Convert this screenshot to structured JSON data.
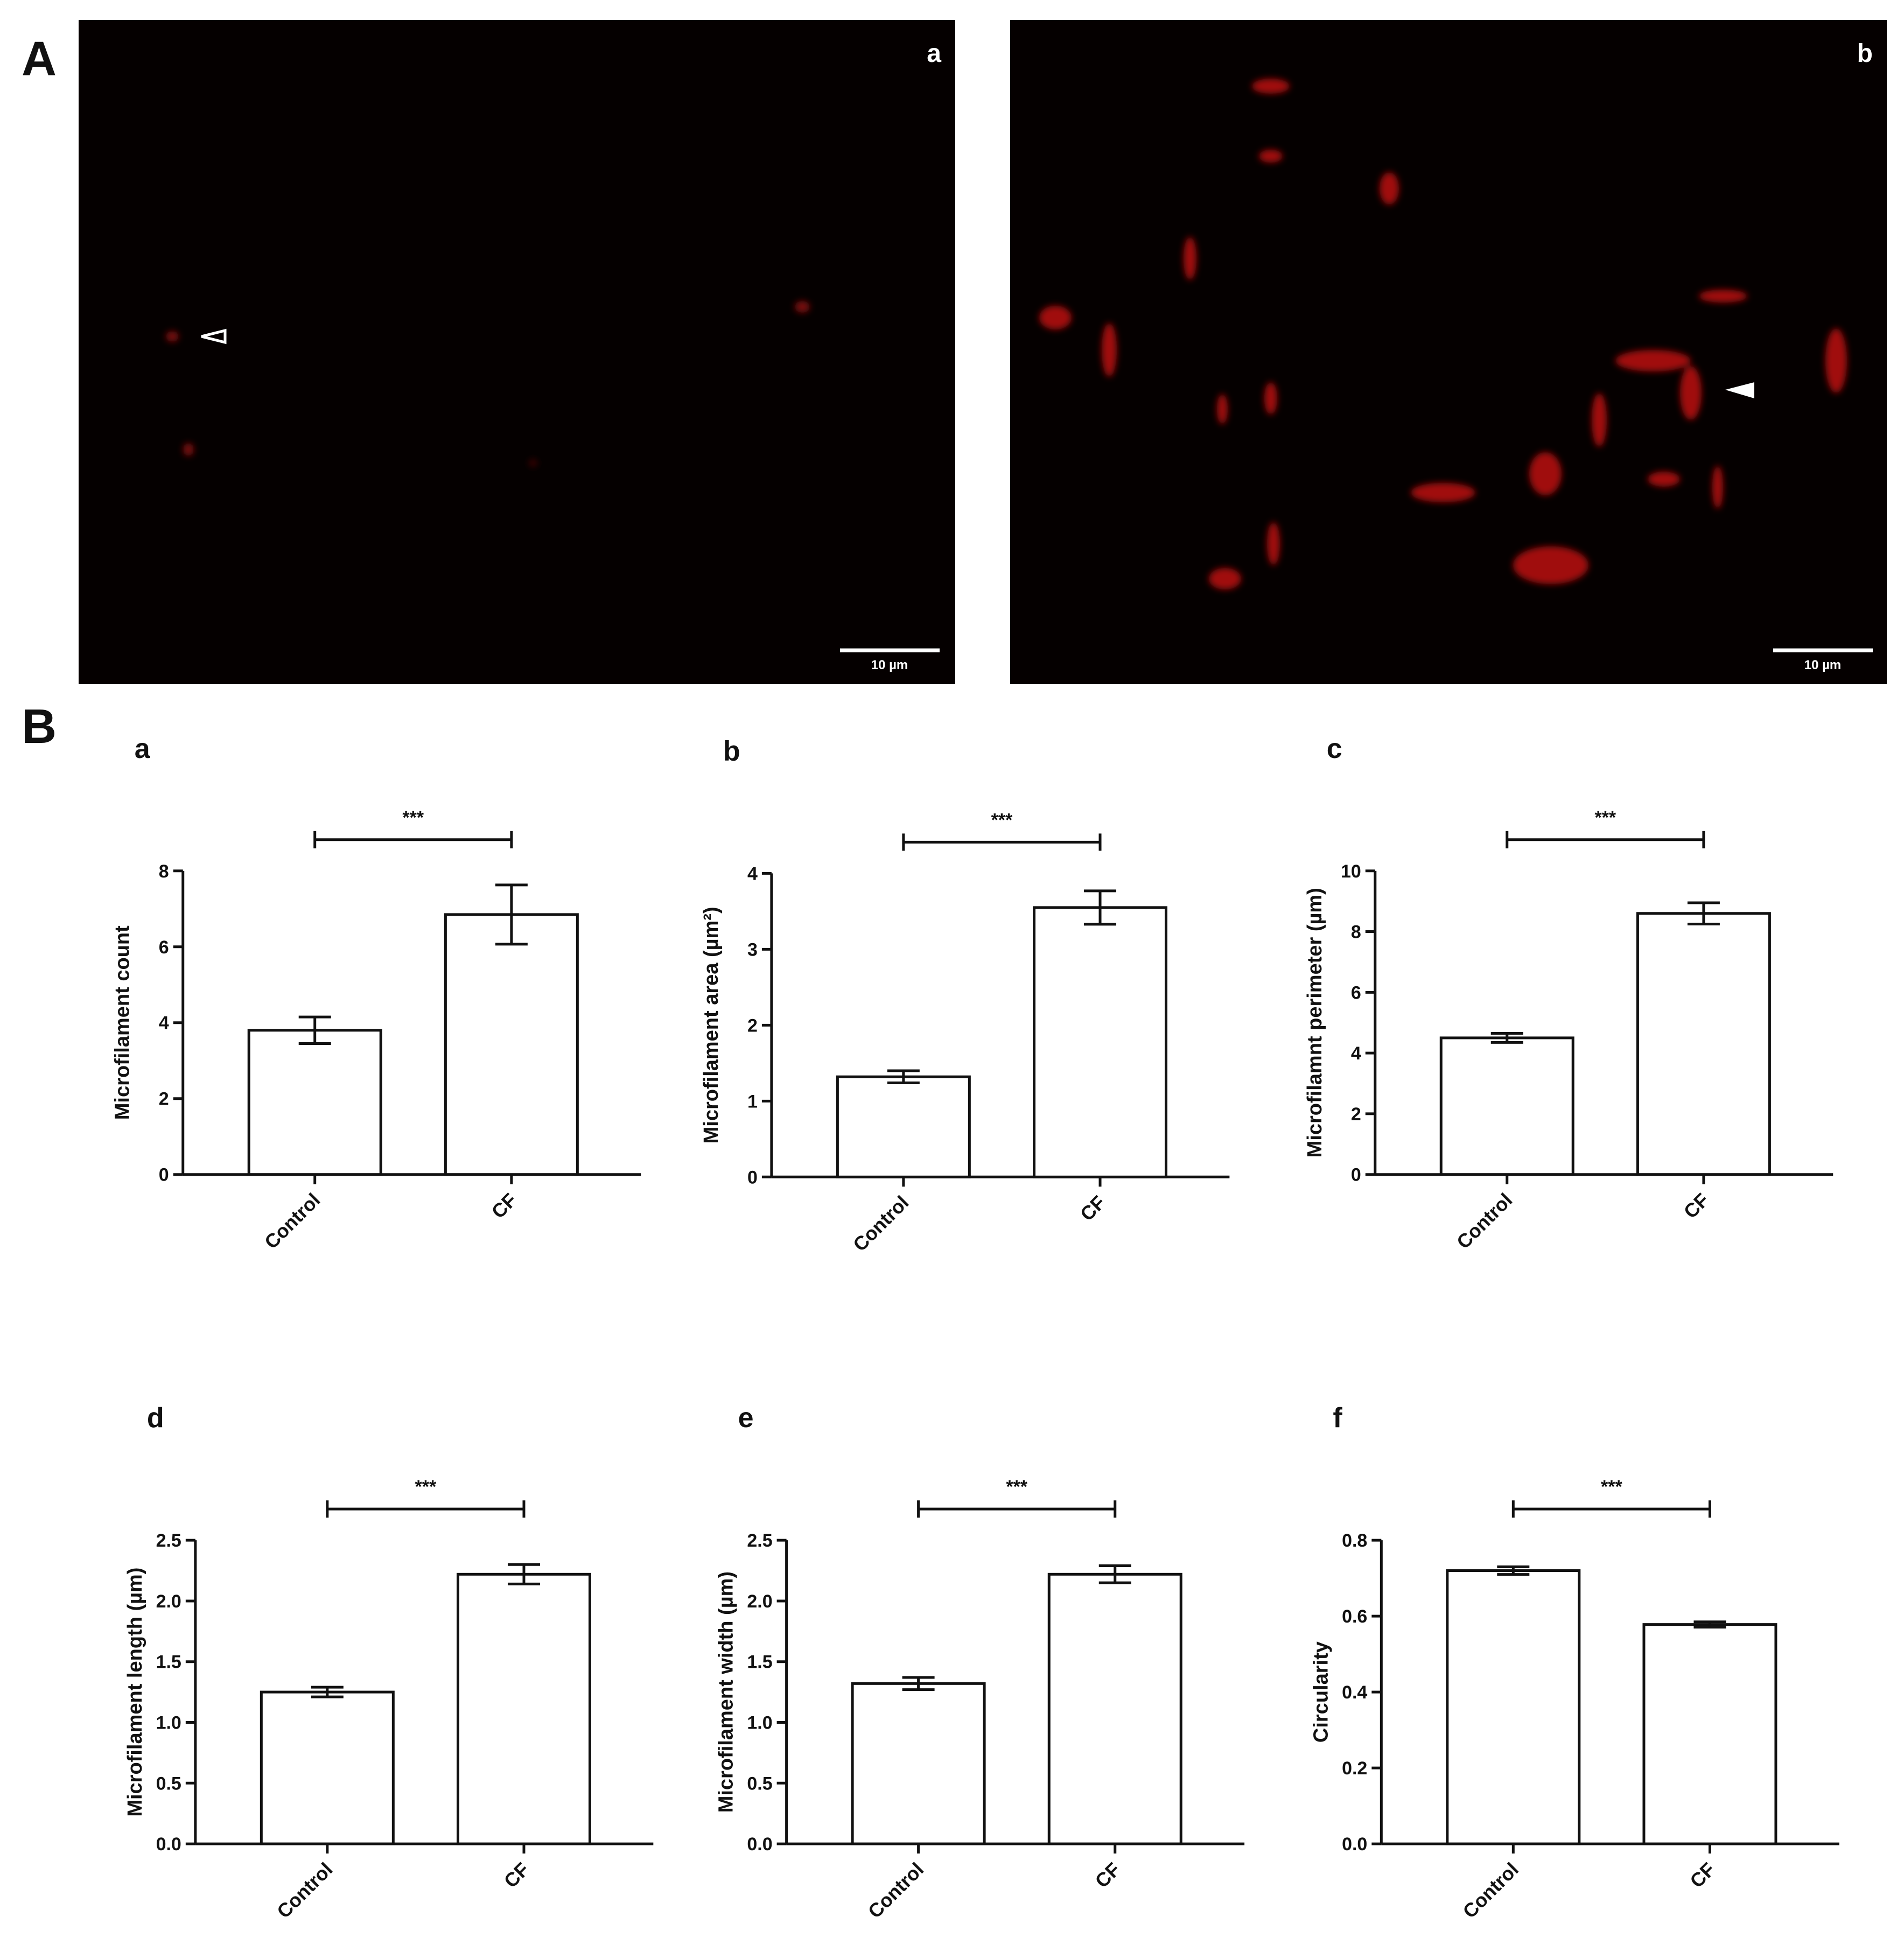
{
  "figure_labels": {
    "A": "A",
    "B": "B"
  },
  "images": [
    {
      "label": "a",
      "scale_bar": "10 µm"
    },
    {
      "label": "b",
      "scale_bar": "10 µm"
    }
  ],
  "chart_data": [
    {
      "type": "bar",
      "panel": "a",
      "y_label": "Microfilament count",
      "categories": [
        "Control",
        "CF"
      ],
      "values": [
        3.8,
        6.85
      ],
      "errors": [
        0.35,
        0.78
      ],
      "significance": "***",
      "color": "#ffffff",
      "ylim": [
        0,
        8
      ],
      "yticks": [
        0,
        2,
        4,
        6,
        8
      ]
    },
    {
      "type": "bar",
      "panel": "b",
      "y_label": "Microfilament area (µm²)",
      "categories": [
        "Control",
        "CF"
      ],
      "values": [
        1.32,
        3.55
      ],
      "errors": [
        0.08,
        0.22
      ],
      "significance": "***",
      "color": "#ffffff",
      "ylim": [
        0,
        4
      ],
      "yticks": [
        0,
        1,
        2,
        3,
        4
      ]
    },
    {
      "type": "bar",
      "panel": "c",
      "y_label": "Microfilamnt perimeter (µm)",
      "categories": [
        "Control",
        "CF"
      ],
      "values": [
        4.5,
        8.6
      ],
      "errors": [
        0.15,
        0.35
      ],
      "significance": "***",
      "color": "#ffffff",
      "ylim": [
        0,
        10
      ],
      "yticks": [
        0,
        2,
        4,
        6,
        8,
        10
      ]
    },
    {
      "type": "bar",
      "panel": "d",
      "y_label": "Microfilament length (µm)",
      "categories": [
        "Control",
        "CF"
      ],
      "values": [
        1.25,
        2.22
      ],
      "errors": [
        0.04,
        0.08
      ],
      "significance": "***",
      "color": "#ffffff",
      "ylim": [
        0,
        2.5
      ],
      "yticks": [
        {
          "value": 0,
          "label": "0.0"
        },
        0.5,
        {
          "value": 1,
          "label": "1.0"
        },
        1.5,
        {
          "value": 2,
          "label": "2.0"
        },
        2.5
      ]
    },
    {
      "type": "bar",
      "panel": "e",
      "y_label": "Microfilament width (µm)",
      "categories": [
        "Control",
        "CF"
      ],
      "values": [
        1.32,
        2.22
      ],
      "errors": [
        0.05,
        0.07
      ],
      "significance": "***",
      "color": "#ffffff",
      "ylim": [
        0,
        2.5
      ],
      "yticks": [
        {
          "value": 0,
          "label": "0.0"
        },
        0.5,
        {
          "value": 1,
          "label": "1.0"
        },
        1.5,
        {
          "value": 2,
          "label": "2.0"
        },
        2.5
      ]
    },
    {
      "type": "bar",
      "panel": "f",
      "y_label": "Circularity",
      "categories": [
        "Control",
        "CF"
      ],
      "values": [
        0.72,
        0.578
      ],
      "errors": [
        0.01,
        0.007
      ],
      "significance": "***",
      "color": "#ffffff",
      "ylim": [
        0,
        0.8
      ],
      "yticks": [
        {
          "value": 0,
          "label": "0.0"
        },
        0.2,
        0.4,
        0.6,
        0.8
      ]
    }
  ]
}
